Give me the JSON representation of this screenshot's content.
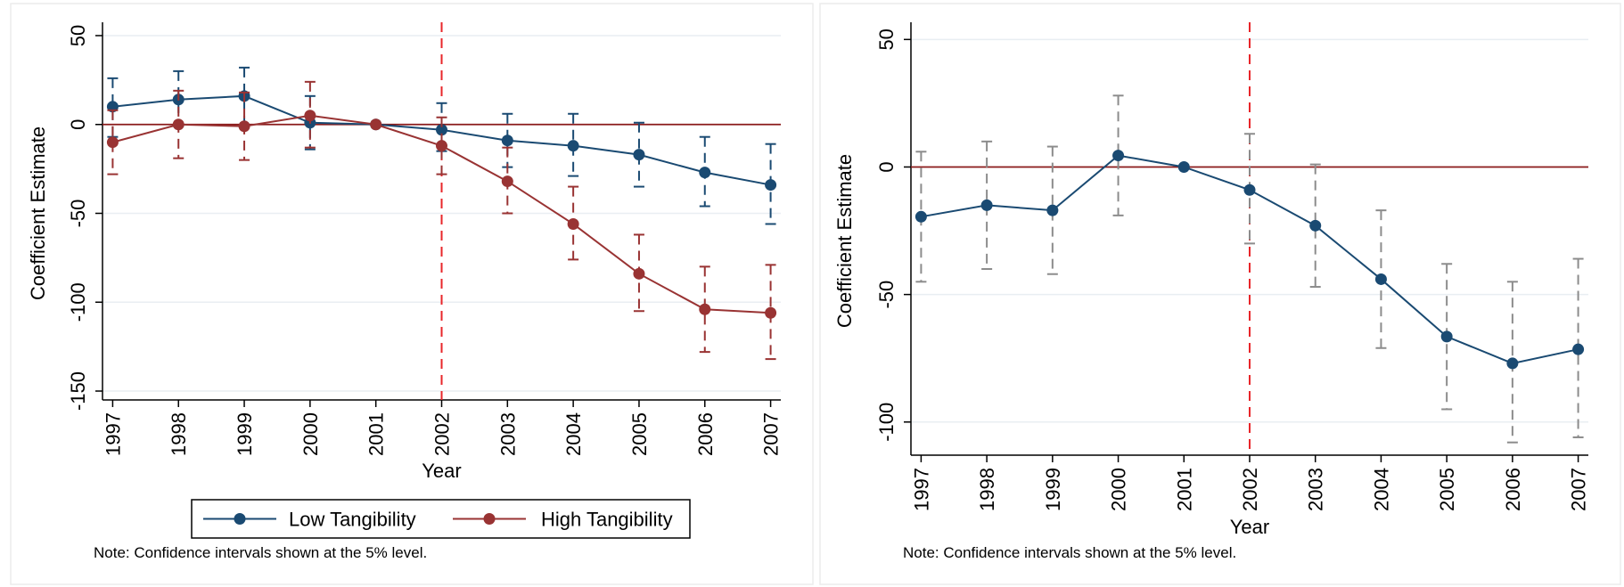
{
  "chart_data": [
    {
      "type": "line",
      "xlabel": "Year",
      "ylabel": "Coefficient Estimate",
      "x": [
        "1997",
        "1998",
        "1999",
        "2000",
        "2001",
        "2002",
        "2003",
        "2004",
        "2005",
        "2006",
        "2007"
      ],
      "yticks": [
        "50",
        "0",
        "-50",
        "-100",
        "-150"
      ],
      "ylim": [
        -155,
        55
      ],
      "grid": true,
      "reference_line_y": 0,
      "vertical_line_x": "2002",
      "series": [
        {
          "name": "Low Tangibility",
          "color": "#1a4a72",
          "values": [
            10,
            14,
            16,
            1,
            0,
            -3,
            -9,
            -12,
            -17,
            -27,
            -34
          ],
          "ci_low": [
            -7,
            -1,
            -1,
            -14,
            0,
            -15,
            -24,
            -29,
            -35,
            -46,
            -56
          ],
          "ci_high": [
            26,
            30,
            32,
            16,
            0,
            12,
            6,
            6,
            1,
            -7,
            -11
          ]
        },
        {
          "name": "High Tangibility",
          "color": "#993333",
          "values": [
            -10,
            0,
            -1,
            5,
            0,
            -12,
            -32,
            -56,
            -84,
            -104,
            -106
          ],
          "ci_low": [
            -28,
            -19,
            -20,
            -13,
            0,
            -28,
            -50,
            -76,
            -105,
            -128,
            -132
          ],
          "ci_high": [
            8,
            19,
            18,
            24,
            0,
            4,
            -13,
            -35,
            -62,
            -80,
            -79
          ]
        }
      ],
      "legend_position": "bottom",
      "note": "Note: Confidence intervals shown at the 5% level."
    },
    {
      "type": "line",
      "xlabel": "Year",
      "ylabel": "Coefficient Estimate",
      "x": [
        "1997",
        "1998",
        "1999",
        "2000",
        "2001",
        "2002",
        "2003",
        "2004",
        "2005",
        "2006",
        "2007"
      ],
      "yticks": [
        "50",
        "0",
        "-50",
        "-100"
      ],
      "ylim": [
        -113,
        55
      ],
      "grid": true,
      "reference_line_y": 0,
      "vertical_line_x": "2002",
      "series": [
        {
          "color": "#1a4a72",
          "ci_color": "#8c8c8c",
          "values": [
            -19.5,
            -15,
            -17,
            4.5,
            0,
            -9,
            -23,
            -44,
            -66.5,
            -77,
            -71.5
          ],
          "ci_low": [
            -45,
            -40,
            -42,
            -19,
            0,
            -30,
            -47,
            -71,
            -95,
            -108,
            -106
          ],
          "ci_high": [
            6,
            10,
            8,
            28,
            0,
            13,
            1,
            -17,
            -38,
            -45,
            -36
          ]
        }
      ],
      "note": "Note: Confidence intervals shown at the 5% level."
    }
  ]
}
